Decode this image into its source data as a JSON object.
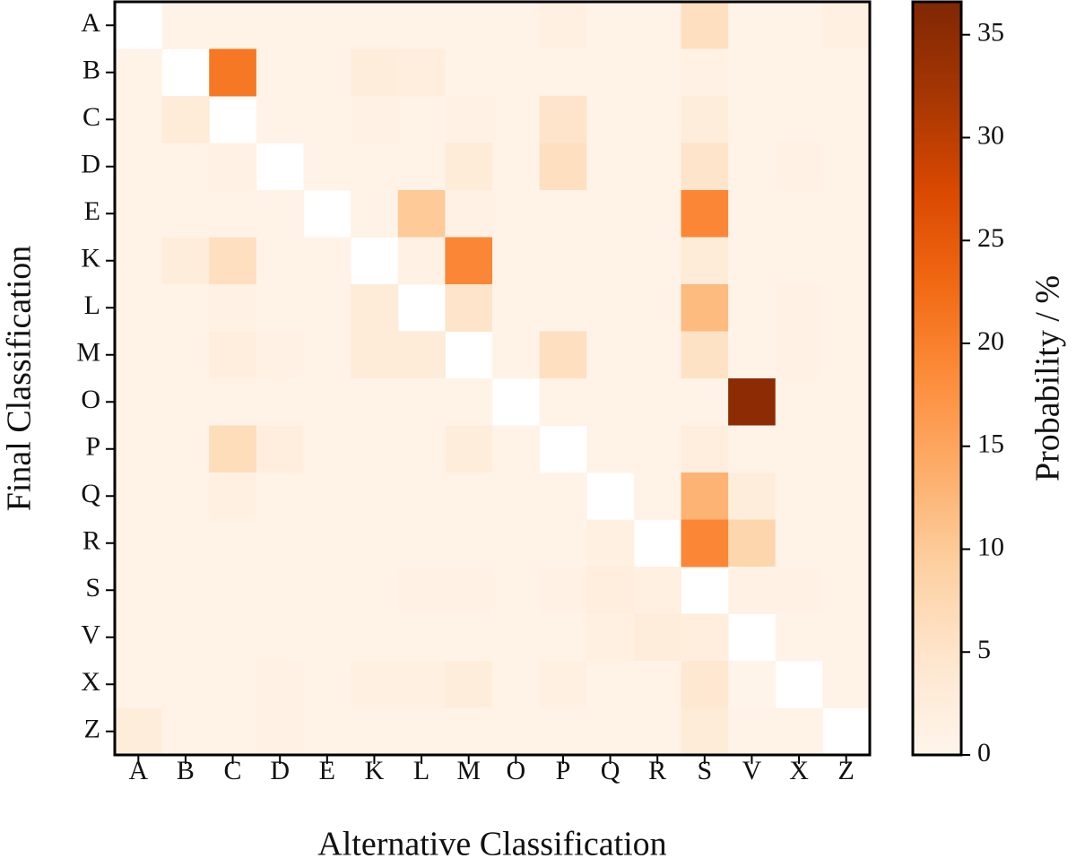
{
  "chart_data": {
    "type": "heatmap",
    "xlabel": "Alternative Classification",
    "ylabel": "Final Classification",
    "colorbar_label": "Probability / %",
    "x": [
      "A",
      "B",
      "C",
      "D",
      "E",
      "K",
      "L",
      "M",
      "O",
      "P",
      "Q",
      "R",
      "S",
      "V",
      "X",
      "Z"
    ],
    "y": [
      "A",
      "B",
      "C",
      "D",
      "E",
      "K",
      "L",
      "M",
      "O",
      "P",
      "Q",
      "R",
      "S",
      "V",
      "X",
      "Z"
    ],
    "z": [
      [
        null,
        0.5,
        0.5,
        0.5,
        0.5,
        0.5,
        0.5,
        0.5,
        0.5,
        1.5,
        0.5,
        0.5,
        6,
        0.5,
        0.5,
        1.5
      ],
      [
        0.5,
        null,
        21,
        0.5,
        0.5,
        2.5,
        2,
        0.5,
        0.5,
        0.5,
        0.5,
        0.5,
        1,
        0.5,
        0.5,
        0.5
      ],
      [
        0.5,
        3,
        null,
        0.5,
        0.5,
        1,
        0.8,
        1.2,
        0.5,
        5,
        0.8,
        0.5,
        2.5,
        0.8,
        0.8,
        0.5
      ],
      [
        0.5,
        0.5,
        1.2,
        null,
        0.5,
        0.8,
        0.8,
        3,
        0.5,
        6,
        0.5,
        0.5,
        5,
        0.8,
        1.2,
        0.5
      ],
      [
        0.5,
        0.5,
        0.5,
        0.8,
        null,
        0.5,
        10,
        1,
        0.5,
        0.5,
        0.5,
        0.5,
        19,
        0.5,
        0.5,
        0.5
      ],
      [
        0.5,
        2.5,
        6,
        0.5,
        0.5,
        null,
        1,
        19,
        0.5,
        0.5,
        0.8,
        0.5,
        3,
        0.5,
        0.8,
        0.5
      ],
      [
        0.5,
        0.8,
        1.2,
        0.5,
        0.5,
        3,
        null,
        5,
        0.5,
        0.5,
        0.5,
        0.5,
        12,
        0.5,
        1,
        0.5
      ],
      [
        0.5,
        0.5,
        2,
        1,
        0.5,
        3,
        3,
        null,
        0.5,
        6,
        0.5,
        0.5,
        5.5,
        0.5,
        1,
        0.5
      ],
      [
        0.5,
        0.5,
        0.5,
        0.5,
        0.5,
        0.5,
        0.5,
        0.5,
        null,
        0.5,
        0.5,
        0.5,
        0.5,
        35,
        0.5,
        0.5
      ],
      [
        0.8,
        0.5,
        6.5,
        2,
        0.5,
        0.8,
        0.5,
        2.5,
        0.5,
        null,
        0.5,
        0.5,
        2,
        0.5,
        0.5,
        0.5
      ],
      [
        0.5,
        0.5,
        1.5,
        0.5,
        0.5,
        0.5,
        0.5,
        0.8,
        0.5,
        0.5,
        null,
        0.5,
        13,
        2.5,
        0.5,
        0.5
      ],
      [
        0.5,
        0.5,
        0.5,
        0.5,
        0.5,
        0.5,
        0.5,
        0.5,
        0.5,
        0.5,
        1.5,
        null,
        19,
        8,
        0.5,
        0.5
      ],
      [
        0.8,
        0.5,
        0.8,
        0.5,
        0.8,
        0.8,
        1,
        1,
        0.5,
        1,
        2,
        1.5,
        null,
        1,
        1,
        0.5
      ],
      [
        0.5,
        0.5,
        0.5,
        0.5,
        0.5,
        0.5,
        0.5,
        0.5,
        0.5,
        0.5,
        1.5,
        2.5,
        2,
        null,
        0.5,
        0.5
      ],
      [
        0.5,
        0.5,
        0.8,
        1.2,
        0.5,
        1.5,
        1.5,
        2.5,
        0.5,
        1.5,
        0.5,
        0.5,
        4,
        0.3,
        null,
        0.5
      ],
      [
        2.5,
        0.5,
        0.5,
        1.2,
        0.5,
        0.5,
        0.5,
        0.5,
        0.5,
        0.8,
        0.5,
        0.5,
        3,
        0.5,
        0.5,
        null
      ]
    ],
    "clim": [
      0,
      36.6
    ],
    "cticks": [
      0,
      5,
      10,
      15,
      20,
      25,
      30,
      35
    ],
    "colorscale": [
      "#fff5eb",
      "#fee6ce",
      "#fdd0a2",
      "#fdae6b",
      "#fd8d3c",
      "#f16913",
      "#d94801",
      "#a63603",
      "#7f2704"
    ]
  }
}
